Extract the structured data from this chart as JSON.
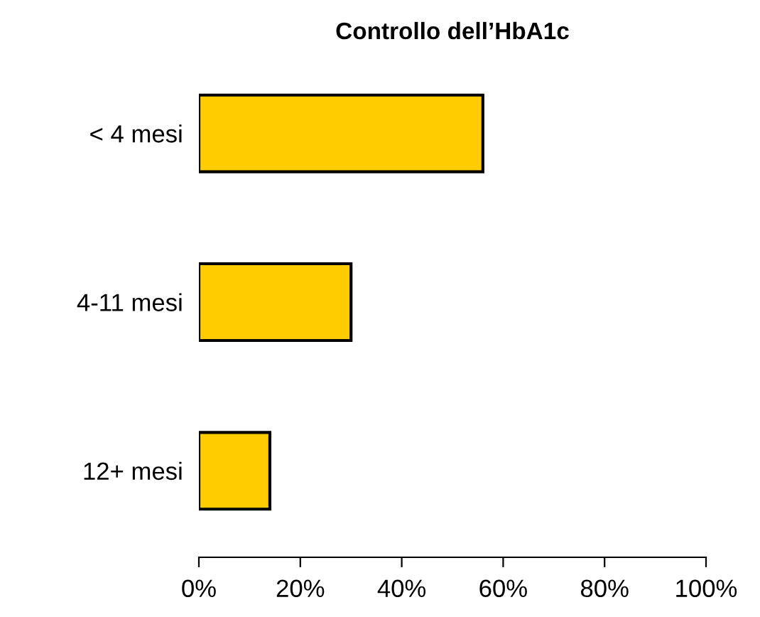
{
  "chart_data": {
    "type": "bar",
    "orientation": "horizontal",
    "title": "Controllo dell’HbA1c",
    "categories": [
      "< 4 mesi",
      "4-11 mesi",
      "12+ mesi"
    ],
    "values": [
      56,
      30,
      14
    ],
    "color": "#ffcc00",
    "xlim": [
      0,
      100
    ],
    "xticks": [
      {
        "value": 0,
        "label": "0%"
      },
      {
        "value": 20,
        "label": "20%"
      },
      {
        "value": 40,
        "label": "40%"
      },
      {
        "value": 60,
        "label": "60%"
      },
      {
        "value": 80,
        "label": "80%"
      },
      {
        "value": 100,
        "label": "100%"
      }
    ],
    "grid": false
  }
}
